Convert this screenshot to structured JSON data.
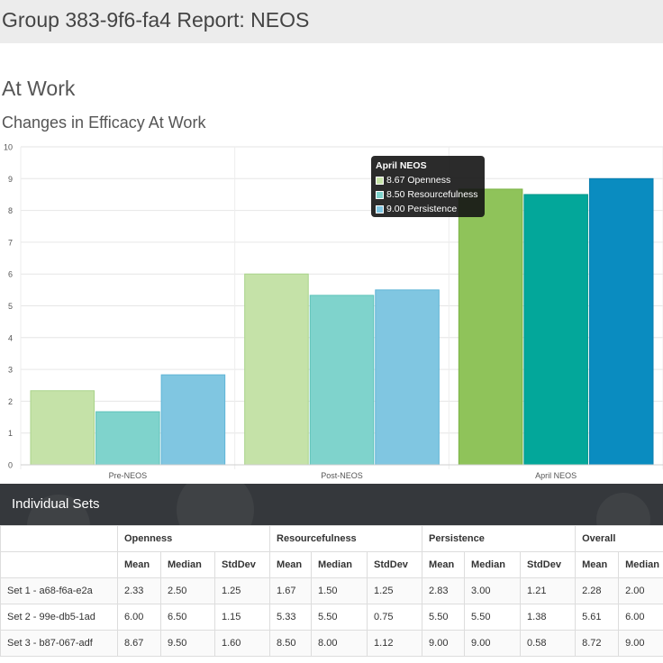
{
  "report": {
    "title": "Group 383-9f6-fa4 Report: NEOS"
  },
  "section": {
    "title": "At Work"
  },
  "chart_data": {
    "type": "bar",
    "title": "Changes in Efficacy At Work",
    "categories": [
      "Pre-NEOS",
      "Post-NEOS",
      "April NEOS"
    ],
    "series": [
      {
        "name": "Openness",
        "values": [
          2.33,
          6.0,
          8.67
        ],
        "colors": [
          "#c5e2a8",
          "#c5e2a8",
          "#8fc35a"
        ],
        "borders": [
          "#a9d38a",
          "#a9d38a",
          "#7ab346"
        ]
      },
      {
        "name": "Resourcefulness",
        "values": [
          1.67,
          5.33,
          8.5
        ],
        "colors": [
          "#7fd3cc",
          "#7fd3cc",
          "#03a79a"
        ],
        "borders": [
          "#5ec3ba",
          "#5ec3ba",
          "#02968a"
        ]
      },
      {
        "name": "Persistence",
        "values": [
          2.83,
          5.5,
          9.0
        ],
        "colors": [
          "#80c6e1",
          "#80c6e1",
          "#0a8cc0"
        ],
        "borders": [
          "#5fb4d6",
          "#5fb4d6",
          "#0a7eaf"
        ]
      }
    ],
    "ylim": [
      0,
      10
    ],
    "yticks": [
      "0",
      "1",
      "2",
      "3",
      "4",
      "5",
      "6",
      "7",
      "8",
      "9",
      "10"
    ],
    "grid": true,
    "legend": "none",
    "tooltip": {
      "title": "April NEOS",
      "items": [
        {
          "text": "8.67 Openness",
          "color": "#c5e2a8"
        },
        {
          "text": "8.50 Resourcefulness",
          "color": "#7fd3cc"
        },
        {
          "text": "9.00 Persistence",
          "color": "#80c6e1"
        }
      ]
    }
  },
  "individual_sets": {
    "title": "Individual Sets",
    "groups": [
      "Openness",
      "Resourcefulness",
      "Persistence",
      "Overall"
    ],
    "columns": [
      "Mean",
      "Median",
      "StdDev",
      "Mean",
      "Median",
      "StdDev",
      "Mean",
      "Median",
      "StdDev",
      "Mean",
      "Median"
    ],
    "rows": [
      {
        "label": "Set 1 - a68-f6a-e2a",
        "values": [
          "2.33",
          "2.50",
          "1.25",
          "1.67",
          "1.50",
          "1.25",
          "2.83",
          "3.00",
          "1.21",
          "2.28",
          "2.00"
        ]
      },
      {
        "label": "Set 2 - 99e-db5-1ad",
        "values": [
          "6.00",
          "6.50",
          "1.15",
          "5.33",
          "5.50",
          "0.75",
          "5.50",
          "5.50",
          "1.38",
          "5.61",
          "6.00"
        ]
      },
      {
        "label": "Set 3 - b87-067-adf",
        "values": [
          "8.67",
          "9.50",
          "1.60",
          "8.50",
          "8.00",
          "1.12",
          "9.00",
          "9.00",
          "0.58",
          "8.72",
          "9.00"
        ]
      }
    ]
  }
}
